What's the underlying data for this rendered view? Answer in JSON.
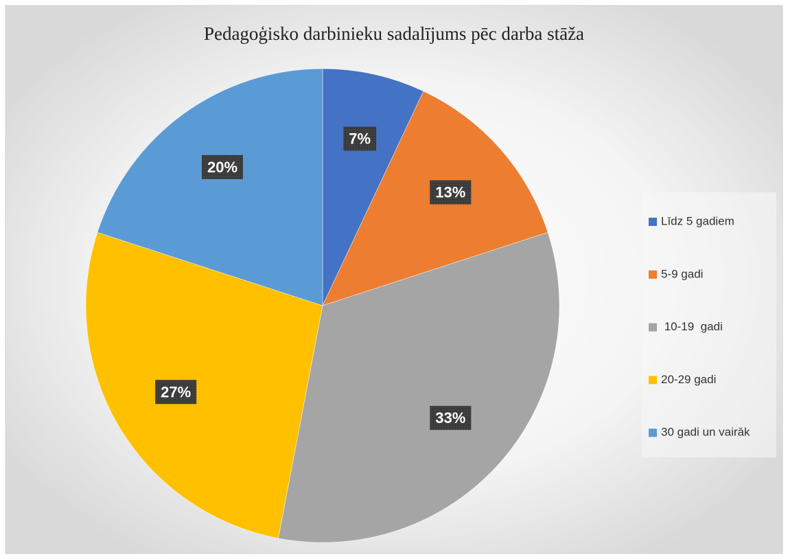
{
  "chart_data": {
    "type": "pie",
    "title": "Pedagoģisko darbinieku sadalījums pēc darba stāža",
    "categories": [
      "Līdz 5 gadiem",
      "5-9 gadi",
      " 10-19  gadi",
      "20-29 gadi",
      "30 gadi un vairāk"
    ],
    "values": [
      7,
      13,
      33,
      27,
      20
    ],
    "value_labels": [
      "7%",
      "13%",
      "33%",
      "27%",
      "20%"
    ],
    "colors": [
      "#4472c4",
      "#ed7d31",
      "#a5a5a5",
      "#ffc000",
      "#5b9bd5"
    ],
    "legend": "right"
  }
}
